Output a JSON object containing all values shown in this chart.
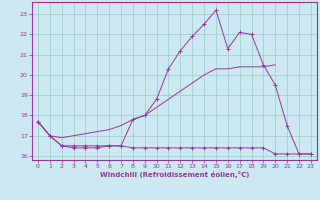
{
  "xlabel": "Windchill (Refroidissement éolien,°C)",
  "bg_color": "#cce8f0",
  "line_color": "#993399",
  "grid_color": "#99cccc",
  "x": [
    0,
    1,
    2,
    3,
    4,
    5,
    6,
    7,
    8,
    9,
    10,
    11,
    12,
    13,
    14,
    15,
    16,
    17,
    18,
    19,
    20,
    21,
    22,
    23
  ],
  "line1": [
    17.7,
    17.0,
    16.5,
    16.4,
    16.4,
    16.4,
    16.5,
    16.5,
    16.4,
    16.4,
    16.4,
    16.4,
    16.4,
    16.4,
    16.4,
    16.4,
    16.4,
    16.4,
    16.4,
    16.4,
    16.1,
    16.1,
    16.1,
    16.1
  ],
  "line2": [
    17.7,
    17.0,
    16.5,
    16.5,
    16.5,
    16.5,
    16.5,
    16.5,
    17.8,
    18.0,
    18.8,
    20.3,
    21.2,
    21.9,
    22.5,
    23.2,
    21.3,
    22.1,
    22.0,
    20.5,
    19.5,
    17.5,
    16.1,
    16.1
  ],
  "line3": [
    17.7,
    17.0,
    16.9,
    17.0,
    17.1,
    17.2,
    17.3,
    17.5,
    17.8,
    18.0,
    18.4,
    18.8,
    19.2,
    19.6,
    20.0,
    20.3,
    20.3,
    20.4,
    20.4,
    20.4,
    20.5,
    null,
    null,
    null
  ],
  "ylim": [
    15.8,
    23.6
  ],
  "xlim": [
    -0.5,
    23.5
  ],
  "yticks": [
    16,
    17,
    18,
    19,
    20,
    21,
    22,
    23
  ],
  "xticks": [
    0,
    1,
    2,
    3,
    4,
    5,
    6,
    7,
    8,
    9,
    10,
    11,
    12,
    13,
    14,
    15,
    16,
    17,
    18,
    19,
    20,
    21,
    22,
    23
  ]
}
